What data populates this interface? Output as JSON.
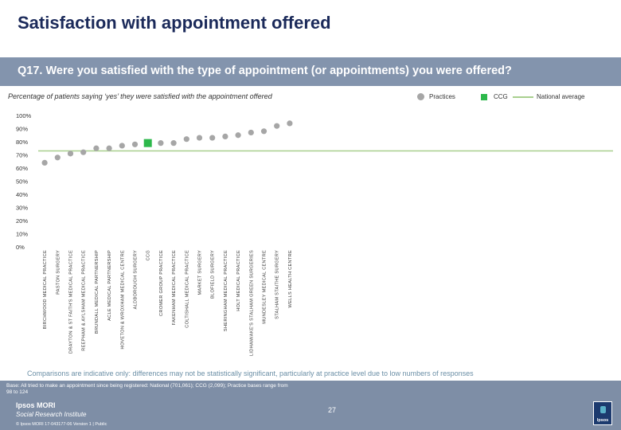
{
  "title": "Satisfaction with appointment offered",
  "question": "Q17. Were you satisfied with the type of appointment (or appointments) you were offered?",
  "subtitle": "Percentage of patients saying ‘yes’ they were satisfied with the appointment offered",
  "legend": {
    "practices": "Practices",
    "ccg": "CCG",
    "national": "National average"
  },
  "note": "Comparisons are indicative only: differences may not be statistically significant, particularly at practice level due to low numbers of responses",
  "base": "Base: All tried to make an appointment since being registered: National (701,061); CCG (2,099); Practice bases range from 98 to 124",
  "footer": {
    "logo_line1": "Ipsos MORI",
    "logo_line2": "Social Research Institute",
    "copyright": "© Ipsos MORI     17-043177-06 Version 1 | Public",
    "page": "27",
    "ipsos_logo": "Ipsos"
  },
  "colors": {
    "practice": "#a6a6a6",
    "ccg": "#2db84b",
    "national": "#a8cf8e"
  },
  "chart_data": {
    "type": "scatter",
    "ylim": [
      0,
      100
    ],
    "yticks": [
      "0%",
      "10%",
      "20%",
      "30%",
      "40%",
      "50%",
      "60%",
      "70%",
      "80%",
      "90%",
      "100%"
    ],
    "national_average": 73,
    "categories": [
      "BIRCHWOOD MEDICAL PRACTICE",
      "PASTON SURGERY",
      "DRAYTON & ST FAITH'S MEDICAL PRACTICE",
      "REEPHAM & AYLSHAM MEDICAL PRACTICE",
      "BRUNDALL MEDICAL PARTNERSHIP",
      "ACLE MEDICAL PARTNERSHIP",
      "HOVETON & WROXHAM MEDICAL CENTRE",
      "ALDBOROUGH SURGERY",
      "CCG",
      "CROMER GROUP PRACTICE",
      "FAKENHAM MEDICAL PRACTICE",
      "COLTISHALL MEDICAL PRACTICE",
      "MARKET SURGERY",
      "BLOFIELD SURGERY",
      "SHERINGHAM MEDICAL PRACTICE",
      "HOLT MEDICAL PRACTICE",
      "LIDHAM/AKE'S STALHAM GREEN SURGERIES",
      "MUNDESLEY MEDICAL CENTRE",
      "STALHAM STAITHE SURGERY",
      "WELLS HEALTH CENTRE"
    ],
    "values": [
      64,
      68,
      71,
      72,
      75,
      75,
      77,
      78,
      79,
      79,
      79,
      82,
      83,
      83,
      84,
      85,
      87,
      88,
      92,
      94
    ],
    "is_ccg": [
      false,
      false,
      false,
      false,
      false,
      false,
      false,
      false,
      true,
      false,
      false,
      false,
      false,
      false,
      false,
      false,
      false,
      false,
      false,
      false
    ]
  }
}
